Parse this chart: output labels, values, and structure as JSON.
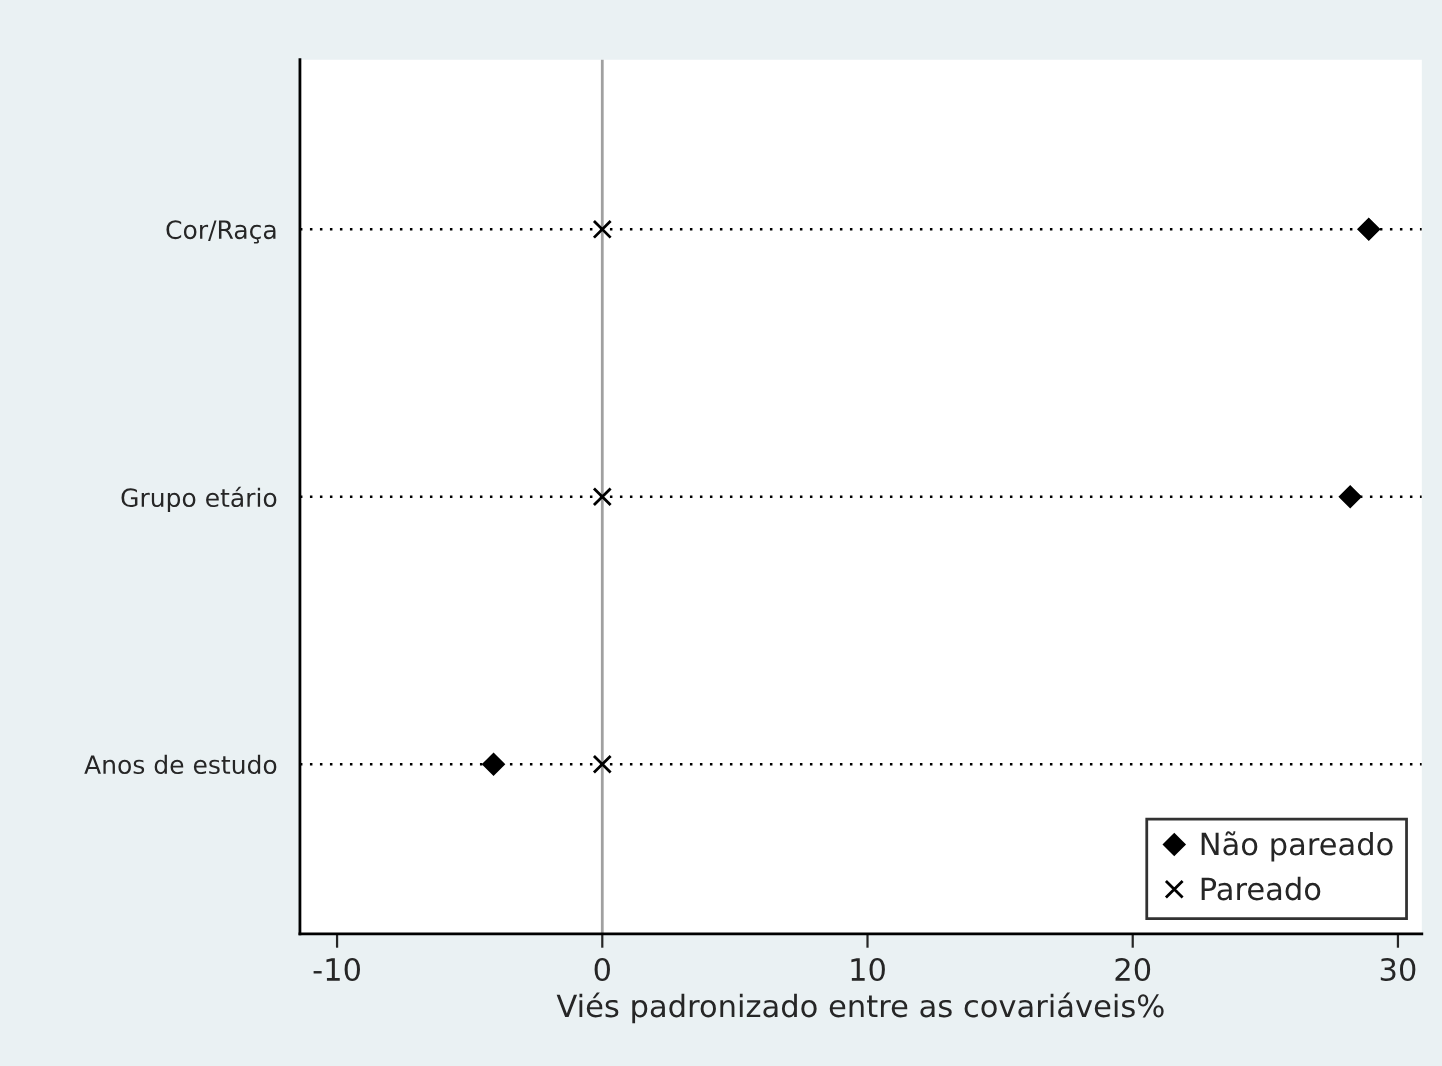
{
  "chart_data": {
    "type": "scatter",
    "orientation": "horizontal",
    "xlabel": "Viés padronizado entre as covariáveis%",
    "categories": [
      "Cor/Raça",
      "Grupo etário",
      "Anos de estudo"
    ],
    "series": [
      {
        "name": "Não pareado",
        "color": "#000000",
        "marker": "diamond",
        "values": [
          28.9,
          28.2,
          -4.1
        ]
      },
      {
        "name": "Pareado",
        "color": "#000000",
        "marker": "cross",
        "values": [
          0,
          0,
          0
        ]
      }
    ],
    "xlim": [
      -11.4,
      30.9
    ],
    "xticks": [
      -10,
      0,
      10,
      20,
      30
    ],
    "ref_lines": [
      {
        "axis": "x",
        "value": 0,
        "color": "#a0a0a0"
      }
    ],
    "grid": "y",
    "legend": "bottom right"
  }
}
